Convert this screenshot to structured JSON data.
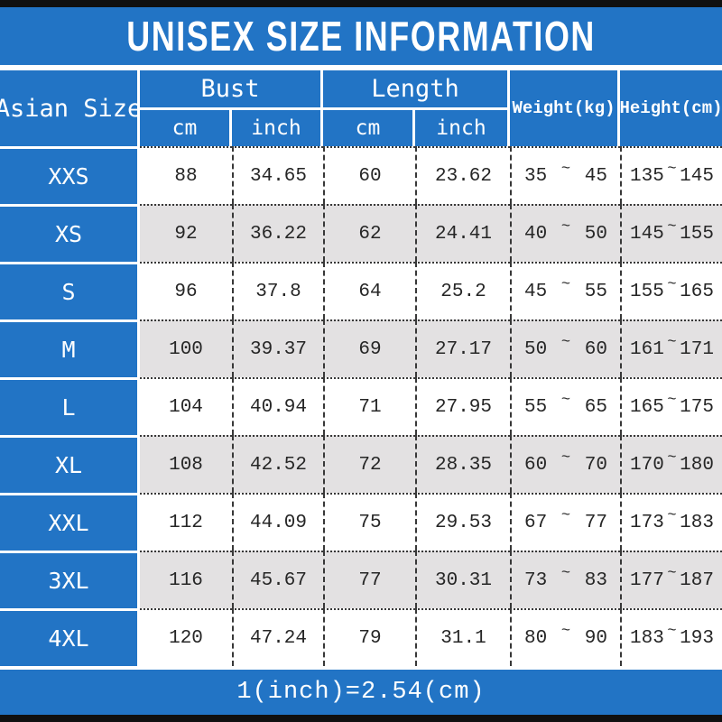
{
  "title": "UNISEX SIZE INFORMATION",
  "footer_note": "1(inch)=2.54(cm)",
  "colors": {
    "accent_blue": "#2274c5",
    "row_alt_gray": "#e3e1e2",
    "bar_black": "#101010",
    "border_dark": "#383838",
    "header_text": "#ffffff",
    "data_text": "#262626"
  },
  "table": {
    "corner_header": "Asian Size",
    "group_headers": [
      {
        "label": "Bust",
        "children": [
          "cm",
          "inch"
        ]
      },
      {
        "label": "Length",
        "children": [
          "cm",
          "inch"
        ]
      }
    ],
    "single_headers": [
      "Weight(kg)",
      "Height(cm)"
    ],
    "range_separator": "~",
    "rows": [
      {
        "size": "XXS",
        "bust_cm": "88",
        "bust_inch": "34.65",
        "length_cm": "60",
        "length_inch": "23.62",
        "weight_min": "35",
        "weight_max": "45",
        "height_min": "135",
        "height_max": "145"
      },
      {
        "size": "XS",
        "bust_cm": "92",
        "bust_inch": "36.22",
        "length_cm": "62",
        "length_inch": "24.41",
        "weight_min": "40",
        "weight_max": "50",
        "height_min": "145",
        "height_max": "155"
      },
      {
        "size": "S",
        "bust_cm": "96",
        "bust_inch": "37.8",
        "length_cm": "64",
        "length_inch": "25.2",
        "weight_min": "45",
        "weight_max": "55",
        "height_min": "155",
        "height_max": "165"
      },
      {
        "size": "M",
        "bust_cm": "100",
        "bust_inch": "39.37",
        "length_cm": "69",
        "length_inch": "27.17",
        "weight_min": "50",
        "weight_max": "60",
        "height_min": "161",
        "height_max": "171"
      },
      {
        "size": "L",
        "bust_cm": "104",
        "bust_inch": "40.94",
        "length_cm": "71",
        "length_inch": "27.95",
        "weight_min": "55",
        "weight_max": "65",
        "height_min": "165",
        "height_max": "175"
      },
      {
        "size": "XL",
        "bust_cm": "108",
        "bust_inch": "42.52",
        "length_cm": "72",
        "length_inch": "28.35",
        "weight_min": "60",
        "weight_max": "70",
        "height_min": "170",
        "height_max": "180"
      },
      {
        "size": "XXL",
        "bust_cm": "112",
        "bust_inch": "44.09",
        "length_cm": "75",
        "length_inch": "29.53",
        "weight_min": "67",
        "weight_max": "77",
        "height_min": "173",
        "height_max": "183"
      },
      {
        "size": "3XL",
        "bust_cm": "116",
        "bust_inch": "45.67",
        "length_cm": "77",
        "length_inch": "30.31",
        "weight_min": "73",
        "weight_max": "83",
        "height_min": "177",
        "height_max": "187"
      },
      {
        "size": "4XL",
        "bust_cm": "120",
        "bust_inch": "47.24",
        "length_cm": "79",
        "length_inch": "31.1",
        "weight_min": "80",
        "weight_max": "90",
        "height_min": "183",
        "height_max": "193"
      }
    ]
  },
  "chart_data": {
    "type": "table",
    "title": "UNISEX SIZE INFORMATION",
    "columns": [
      "Asian Size",
      "Bust cm",
      "Bust inch",
      "Length cm",
      "Length inch",
      "Weight(kg)",
      "Height(cm)"
    ],
    "rows": [
      [
        "XXS",
        88,
        34.65,
        60,
        23.62,
        "35~45",
        "135~145"
      ],
      [
        "XS",
        92,
        36.22,
        62,
        24.41,
        "40~50",
        "145~155"
      ],
      [
        "S",
        96,
        37.8,
        64,
        25.2,
        "45~55",
        "155~165"
      ],
      [
        "M",
        100,
        39.37,
        69,
        27.17,
        "50~60",
        "161~171"
      ],
      [
        "L",
        104,
        40.94,
        71,
        27.95,
        "55~65",
        "165~175"
      ],
      [
        "XL",
        108,
        42.52,
        72,
        28.35,
        "60~70",
        "170~180"
      ],
      [
        "XXL",
        112,
        44.09,
        75,
        29.53,
        "67~77",
        "173~183"
      ],
      [
        "3XL",
        116,
        45.67,
        77,
        30.31,
        "73~83",
        "177~187"
      ],
      [
        "4XL",
        120,
        47.24,
        79,
        31.1,
        "80~90",
        "183~193"
      ]
    ],
    "note": "1(inch)=2.54(cm)"
  }
}
